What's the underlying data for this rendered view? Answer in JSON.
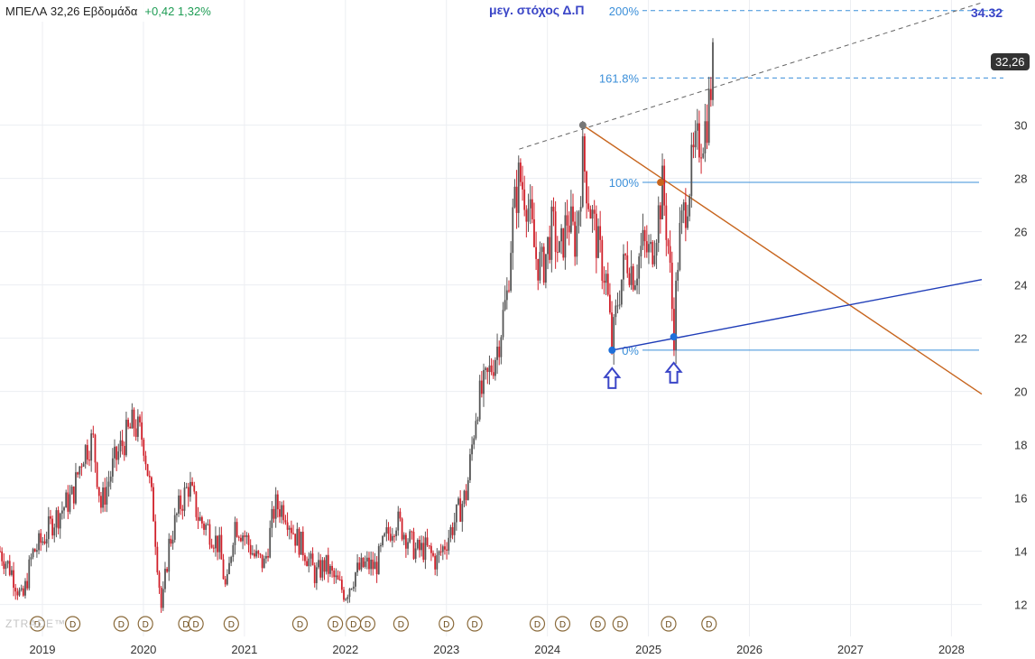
{
  "header": {
    "symbol": "ΜΠΕΛΑ",
    "price": "32,26",
    "interval": "Εβδομάδα",
    "change": "+0,42 1,32%"
  },
  "annotations": {
    "target_label": "μεγ. στόχος Δ.Π",
    "target_value": "34.32",
    "current_price_tag": "32,26",
    "watermark": "ZTRADE™",
    "dividend_marker": "D"
  },
  "colors": {
    "up_candle": "#555555",
    "down_candle": "#d0202a",
    "fib_lines": "#3b8fd9",
    "fib_200": "#3b8fd9",
    "blue_trendline": "#1f3db8",
    "orange_trendline": "#c7651e",
    "arrows": "#3a45c7",
    "dashed_line": "#666666"
  },
  "chart_data": {
    "type": "candlestick",
    "title": "",
    "xlabel": "",
    "ylabel": "",
    "x_ticks": [
      "2019",
      "2020",
      "2021",
      "2022",
      "2023",
      "2024",
      "2025",
      "2026",
      "2027",
      "2028"
    ],
    "y_ticks": [
      12,
      14,
      16,
      18,
      20,
      22,
      24,
      26,
      28,
      30
    ],
    "xlim": [
      2018.58,
      2028.3
    ],
    "ylim": [
      10.8,
      34.7
    ],
    "grid": true,
    "fibonacci_levels": [
      {
        "label": "0%",
        "value": 21.55
      },
      {
        "label": "100%",
        "value": 27.85
      },
      {
        "label": "161.8%",
        "value": 31.77
      },
      {
        "label": "200%",
        "value": 34.3
      }
    ],
    "price_path": [
      [
        2018.58,
        14.0
      ],
      [
        2018.7,
        13.2
      ],
      [
        2018.8,
        12.1
      ],
      [
        2018.9,
        13.9
      ],
      [
        2019.0,
        14.4
      ],
      [
        2019.1,
        15.1
      ],
      [
        2019.2,
        15.6
      ],
      [
        2019.3,
        16.1
      ],
      [
        2019.4,
        17.7
      ],
      [
        2019.5,
        18.2
      ],
      [
        2019.58,
        15.7
      ],
      [
        2019.7,
        17.2
      ],
      [
        2019.8,
        18.1
      ],
      [
        2019.9,
        18.8
      ],
      [
        2020.0,
        18.2
      ],
      [
        2020.1,
        15.4
      ],
      [
        2020.18,
        11.7
      ],
      [
        2020.25,
        14.2
      ],
      [
        2020.35,
        15.6
      ],
      [
        2020.45,
        16.5
      ],
      [
        2020.55,
        15.2
      ],
      [
        2020.65,
        14.8
      ],
      [
        2020.75,
        14.2
      ],
      [
        2020.82,
        12.4
      ],
      [
        2020.9,
        15.1
      ],
      [
        2021.0,
        14.6
      ],
      [
        2021.1,
        13.8
      ],
      [
        2021.2,
        13.5
      ],
      [
        2021.3,
        15.7
      ],
      [
        2021.4,
        15.6
      ],
      [
        2021.5,
        14.6
      ],
      [
        2021.6,
        14.0
      ],
      [
        2021.7,
        13.1
      ],
      [
        2021.8,
        13.5
      ],
      [
        2021.9,
        12.9
      ],
      [
        2022.0,
        12.4
      ],
      [
        2022.1,
        13.2
      ],
      [
        2022.2,
        13.5
      ],
      [
        2022.3,
        13.4
      ],
      [
        2022.4,
        14.5
      ],
      [
        2022.5,
        15.2
      ],
      [
        2022.6,
        14.6
      ],
      [
        2022.7,
        14.0
      ],
      [
        2022.8,
        14.1
      ],
      [
        2022.9,
        13.6
      ],
      [
        2023.0,
        14.4
      ],
      [
        2023.1,
        15.3
      ],
      [
        2023.2,
        16.2
      ],
      [
        2023.3,
        19.5
      ],
      [
        2023.4,
        20.4
      ],
      [
        2023.5,
        21.6
      ],
      [
        2023.6,
        23.6
      ],
      [
        2023.65,
        26.3
      ],
      [
        2023.72,
        28.1
      ],
      [
        2023.8,
        27.2
      ],
      [
        2023.88,
        25.1
      ],
      [
        2023.95,
        24.6
      ],
      [
        2024.05,
        26.2
      ],
      [
        2024.12,
        25.0
      ],
      [
        2024.2,
        26.6
      ],
      [
        2024.28,
        25.6
      ],
      [
        2024.35,
        28.8
      ],
      [
        2024.42,
        27.0
      ],
      [
        2024.5,
        25.4
      ],
      [
        2024.58,
        24.2
      ],
      [
        2024.64,
        21.6
      ],
      [
        2024.7,
        23.6
      ],
      [
        2024.78,
        25.1
      ],
      [
        2024.86,
        24.4
      ],
      [
        2024.94,
        25.5
      ],
      [
        2025.02,
        25.1
      ],
      [
        2025.1,
        26.7
      ],
      [
        2025.14,
        27.7
      ],
      [
        2025.2,
        25.3
      ],
      [
        2025.25,
        22.1
      ],
      [
        2025.3,
        25.6
      ],
      [
        2025.38,
        27.3
      ],
      [
        2025.44,
        28.6
      ],
      [
        2025.5,
        29.4
      ],
      [
        2025.56,
        29.9
      ],
      [
        2025.6,
        30.8
      ],
      [
        2025.64,
        32.26
      ]
    ],
    "trendlines": [
      {
        "from": [
          2023.72,
          29.1
        ],
        "to": [
          2028.3,
          34.6
        ],
        "style": "dashed"
      },
      {
        "from": [
          2024.35,
          30.0
        ],
        "to": [
          2028.3,
          19.9
        ],
        "style": "solid",
        "color": "orange"
      },
      {
        "from": [
          2024.64,
          21.55
        ],
        "to": [
          2028.3,
          24.2
        ],
        "style": "solid",
        "color": "blue"
      }
    ],
    "markers": [
      {
        "x": 2024.35,
        "y": 30.0,
        "kind": "dot-gray"
      },
      {
        "x": 2025.12,
        "y": 27.85,
        "kind": "dot-orange"
      },
      {
        "x": 2024.64,
        "y": 21.55,
        "kind": "dot-blue"
      },
      {
        "x": 2025.25,
        "y": 22.05,
        "kind": "dot-blue"
      },
      {
        "x": 2024.64,
        "y": 20.4,
        "kind": "up-arrow"
      },
      {
        "x": 2025.25,
        "y": 20.6,
        "kind": "up-arrow"
      }
    ],
    "dividend_dates": [
      2018.95,
      2019.3,
      2019.78,
      2020.02,
      2020.42,
      2020.52,
      2020.87,
      2021.55,
      2021.9,
      2022.08,
      2022.22,
      2022.55,
      2023.0,
      2023.28,
      2023.9,
      2024.15,
      2024.5,
      2024.72,
      2025.2,
      2025.6
    ]
  }
}
